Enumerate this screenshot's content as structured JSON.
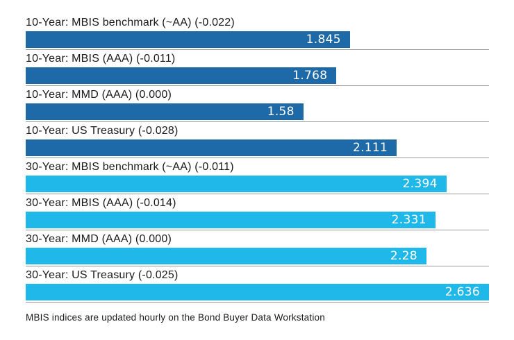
{
  "colors": {
    "dark_blue": "#1e69a8",
    "light_blue": "#20b8e8",
    "separator": "#9a9a9a",
    "label_text": "#1a1a1a",
    "value_text": "#ffffff",
    "background": "#ffffff"
  },
  "chart_data": {
    "type": "bar",
    "orientation": "horizontal",
    "xlim": [
      0,
      2.636
    ],
    "grid": "row-separator-lines-only",
    "value_labels": "inside-end-white",
    "legend": "none",
    "bars": [
      {
        "label": "10-Year: MBIS benchmark (~AA) (-0.022)",
        "value": 1.845,
        "display": "1.845",
        "group": "10-year",
        "color": "#1e69a8"
      },
      {
        "label": "10-Year: MBIS (AAA) (-0.011)",
        "value": 1.768,
        "display": "1.768",
        "group": "10-year",
        "color": "#1e69a8"
      },
      {
        "label": "10-Year: MMD (AAA) (0.000)",
        "value": 1.58,
        "display": "1.58",
        "group": "10-year",
        "color": "#1e69a8"
      },
      {
        "label": "10-Year: US Treasury (-0.028)",
        "value": 2.111,
        "display": "2.111",
        "group": "10-year",
        "color": "#1e69a8"
      },
      {
        "label": "30-Year: MBIS benchmark (~AA) (-0.011)",
        "value": 2.394,
        "display": "2.394",
        "group": "30-year",
        "color": "#20b8e8"
      },
      {
        "label": "30-Year: MBIS (AAA) (-0.014)",
        "value": 2.331,
        "display": "2.331",
        "group": "30-year",
        "color": "#20b8e8"
      },
      {
        "label": "30-Year: MMD (AAA) (0.000)",
        "value": 2.28,
        "display": "2.28",
        "group": "30-year",
        "color": "#20b8e8"
      },
      {
        "label": "30-Year: US Treasury (-0.025)",
        "value": 2.636,
        "display": "2.636",
        "group": "30-year",
        "color": "#20b8e8"
      }
    ],
    "footnote": "MBIS indices are updated hourly on the Bond Buyer Data Workstation"
  }
}
